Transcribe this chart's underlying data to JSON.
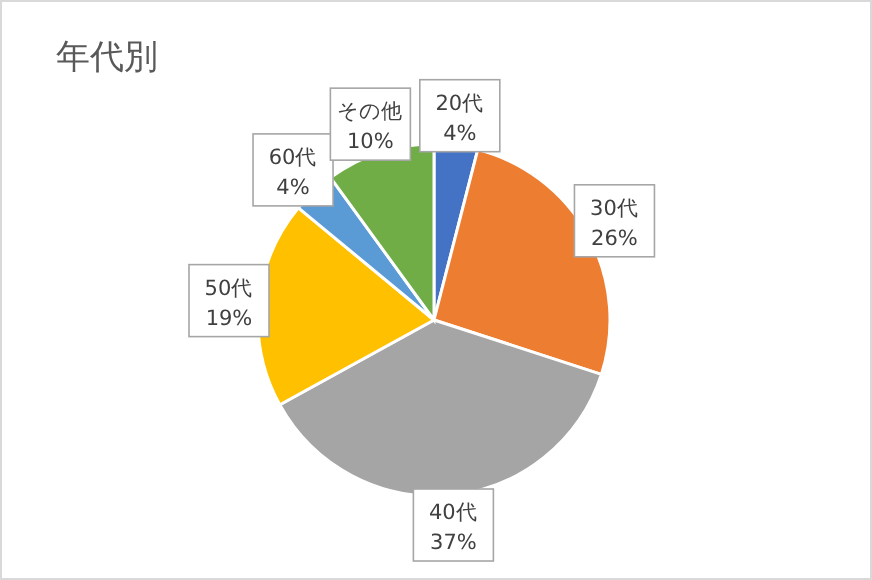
{
  "chart_data": {
    "type": "pie",
    "title": "年代別",
    "categories": [
      "20代",
      "30代",
      "40代",
      "50代",
      "60代",
      "その他"
    ],
    "values": [
      4,
      26,
      37,
      19,
      4,
      10
    ],
    "colors": [
      "#4472c4",
      "#ed7d31",
      "#a5a5a5",
      "#ffc000",
      "#5b9bd5",
      "#70ad47"
    ],
    "value_labels": [
      "4%",
      "26%",
      "37%",
      "19%",
      "4%",
      "10%"
    ]
  }
}
